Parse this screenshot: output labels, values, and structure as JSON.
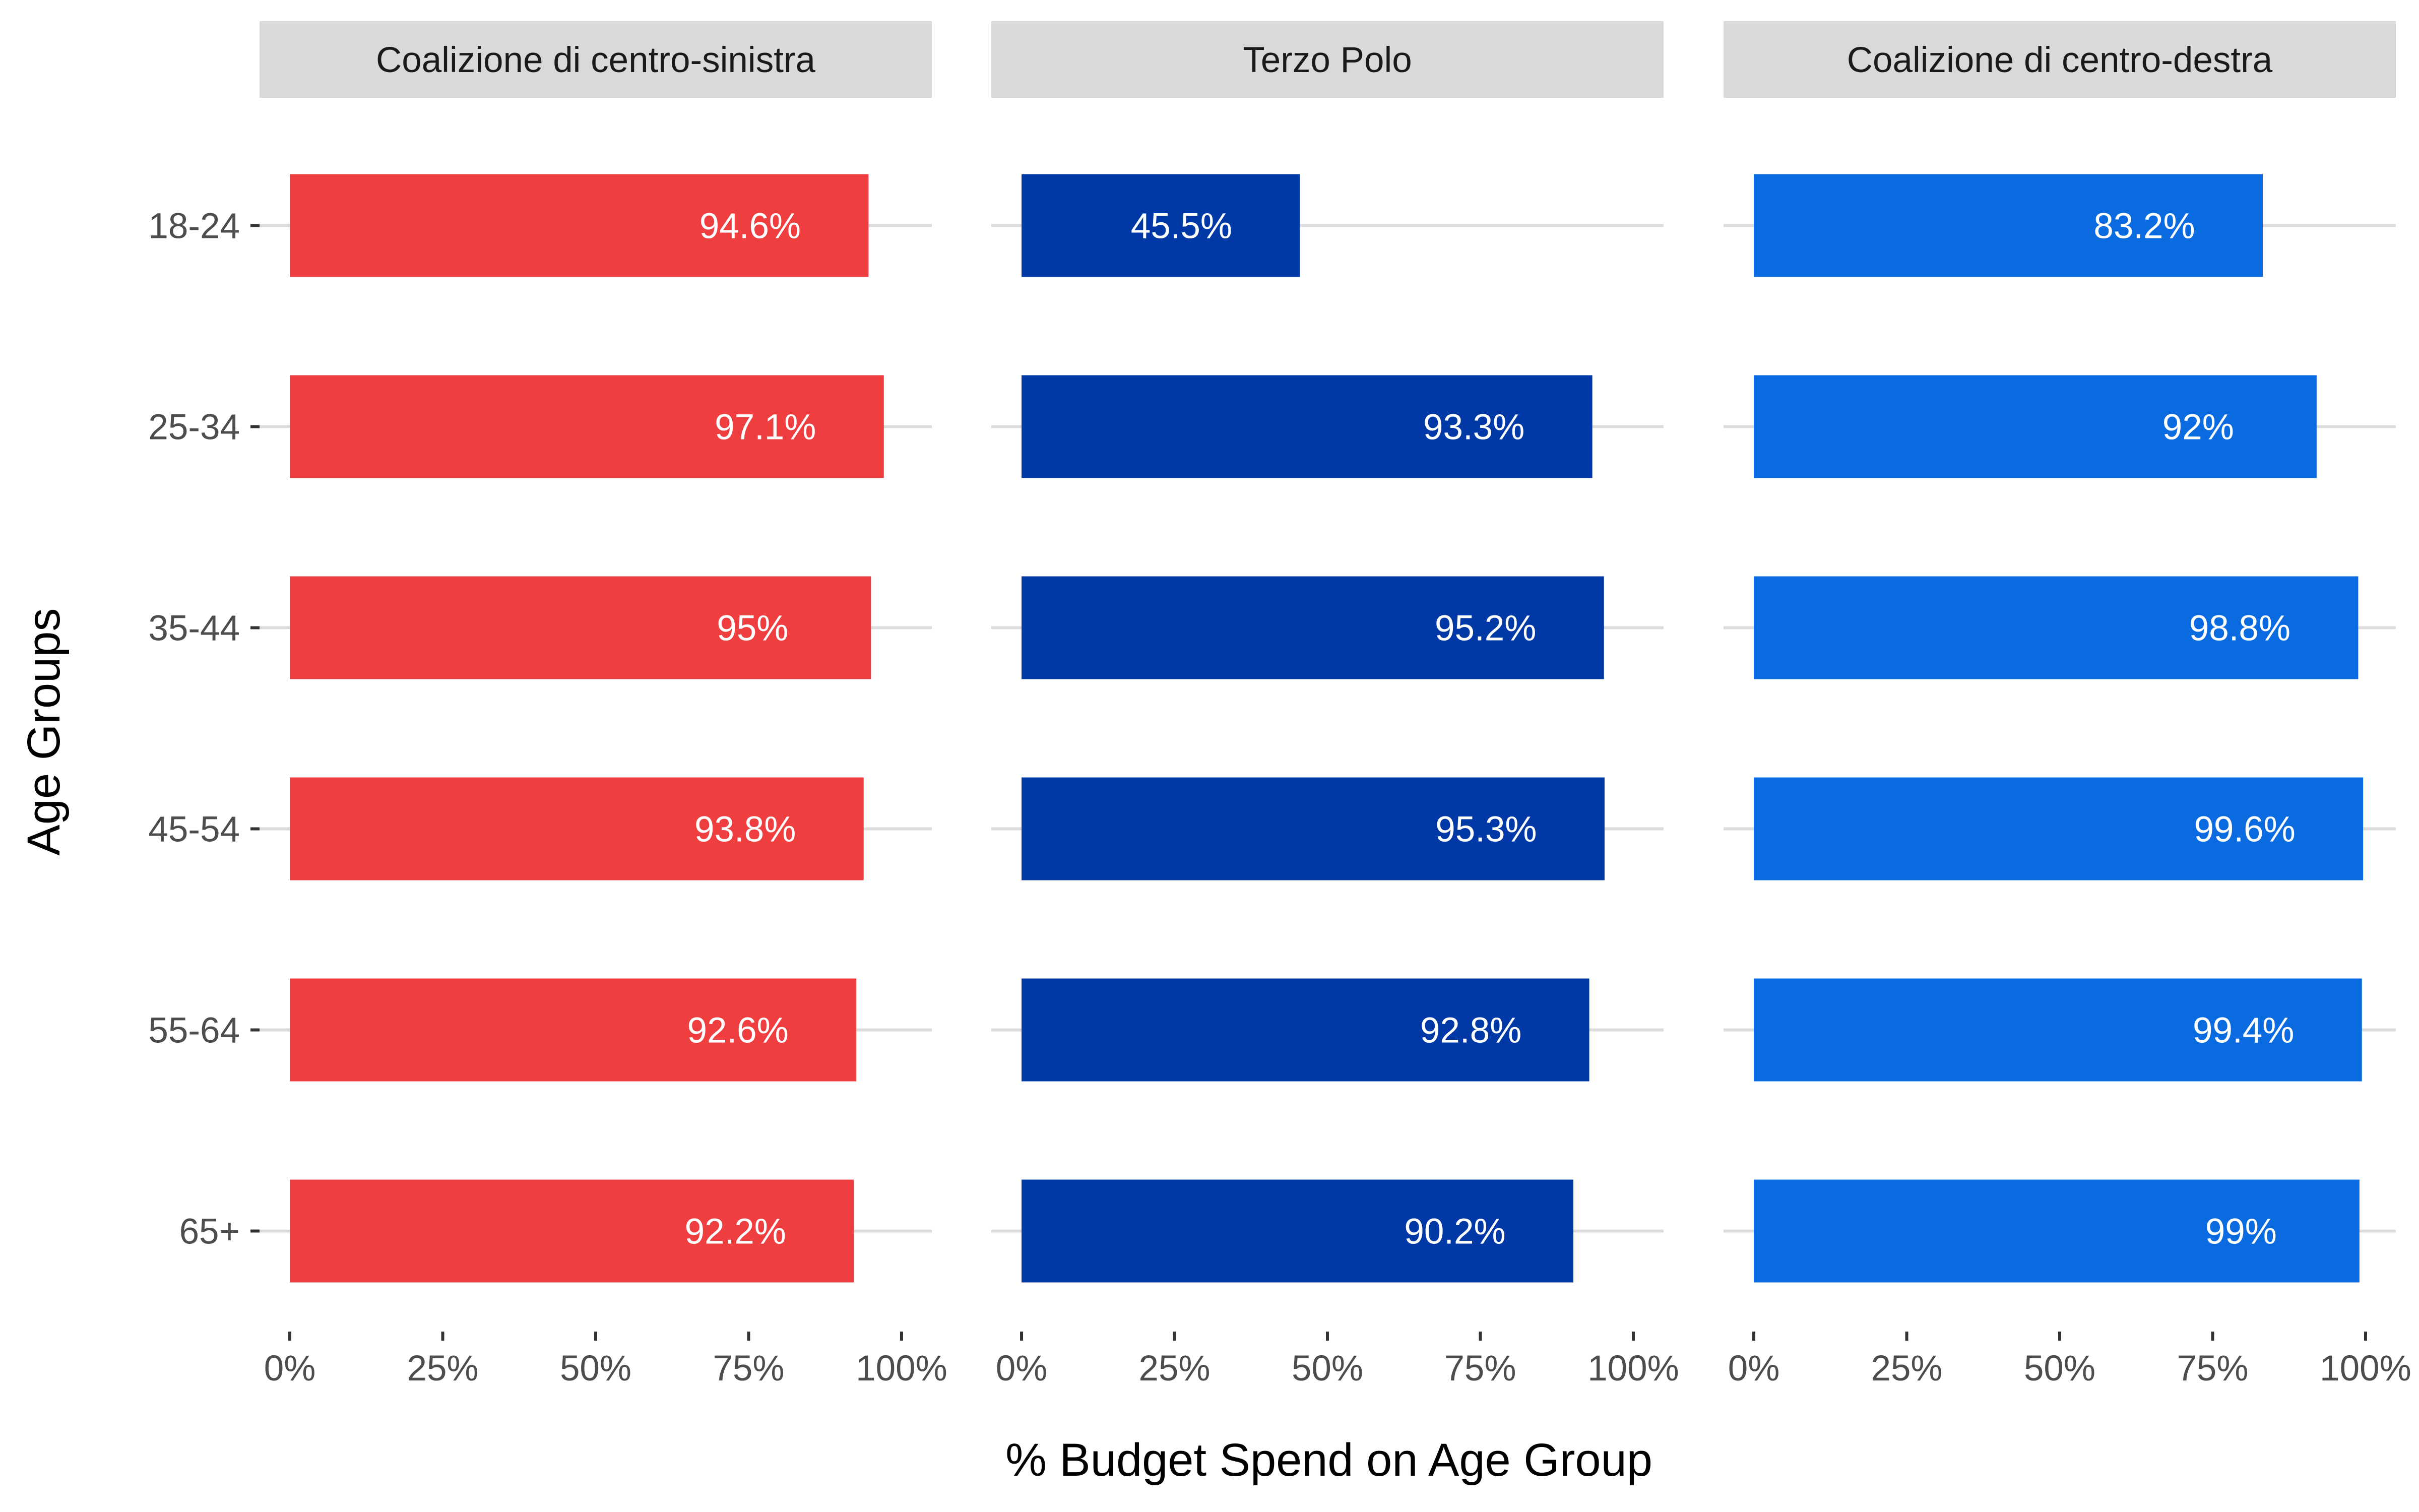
{
  "chart_data": {
    "type": "bar",
    "orientation": "horizontal",
    "xlabel": "% Budget Spend on Age Group",
    "ylabel": "Age Groups",
    "xlim": [
      0,
      100
    ],
    "x_ticks": [
      "0%",
      "25%",
      "50%",
      "75%",
      "100%"
    ],
    "categories": [
      "18-24",
      "25-34",
      "35-44",
      "45-54",
      "55-64",
      "65+"
    ],
    "grid": "horizontal major lines",
    "panels": [
      {
        "name": "Coalizione di centro-sinistra",
        "color": "#EF3E3F",
        "values": [
          94.6,
          97.1,
          95,
          93.8,
          92.6,
          92.2
        ],
        "labels": [
          "94.6%",
          "97.1%",
          "95%",
          "93.8%",
          "92.6%",
          "92.2%"
        ]
      },
      {
        "name": "Terzo Polo",
        "color": "#0039A6",
        "values": [
          45.5,
          93.3,
          95.2,
          95.3,
          92.8,
          90.2
        ],
        "labels": [
          "45.5%",
          "93.3%",
          "95.2%",
          "95.3%",
          "92.8%",
          "90.2%"
        ]
      },
      {
        "name": "Coalizione di centro-destra",
        "color": "#0A6BE1",
        "values": [
          83.2,
          92,
          98.8,
          99.6,
          99.4,
          99
        ],
        "labels": [
          "83.2%",
          "92%",
          "98.8%",
          "99.6%",
          "99.4%",
          "99%"
        ]
      }
    ]
  }
}
